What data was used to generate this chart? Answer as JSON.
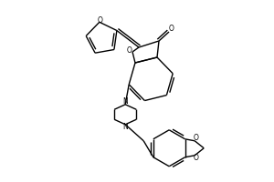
{
  "bg_color": "#ffffff",
  "line_color": "#000000",
  "line_width": 1.0,
  "figsize": [
    3.0,
    2.0
  ],
  "dpi": 100,
  "xlim": [
    0,
    300
  ],
  "ylim": [
    0,
    200
  ]
}
